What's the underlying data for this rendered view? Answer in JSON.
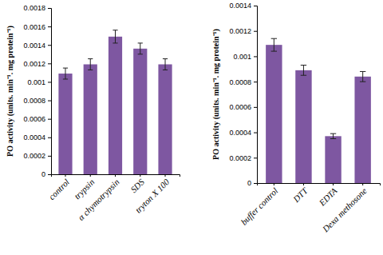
{
  "chart_data": [
    {
      "type": "bar",
      "y_label": "PO activity (units. min⁻¹. mg protein⁻¹)",
      "categories": [
        "control",
        "trypsin",
        "α chymotrypsin",
        "SDS",
        "tryton X 100"
      ],
      "values": [
        0.00109,
        0.00119,
        0.00149,
        0.00136,
        0.00119
      ],
      "errors": [
        6e-05,
        6e-05,
        7e-05,
        6e-05,
        6e-05
      ],
      "color": "#7e57a1",
      "ylim": [
        0,
        0.0018
      ],
      "yticks": [
        0,
        0.0002,
        0.0004,
        0.0006,
        0.0008,
        0.001,
        0.0012,
        0.0014,
        0.0016,
        0.0018
      ],
      "grid": false
    },
    {
      "type": "bar",
      "y_label": "PO activity (units. min⁻¹. mg protein⁻¹)",
      "categories": [
        "buffer control",
        "DTT",
        "EDTA",
        "Dexa methosone"
      ],
      "values": [
        0.00109,
        0.00089,
        0.00037,
        0.00084
      ],
      "errors": [
        5e-05,
        4e-05,
        2e-05,
        4e-05
      ],
      "color": "#7e57a1",
      "ylim": [
        0,
        0.0014
      ],
      "yticks": [
        0,
        0.0002,
        0.0004,
        0.0006,
        0.0008,
        0.001,
        0.0012,
        0.0014
      ],
      "grid": false
    }
  ]
}
